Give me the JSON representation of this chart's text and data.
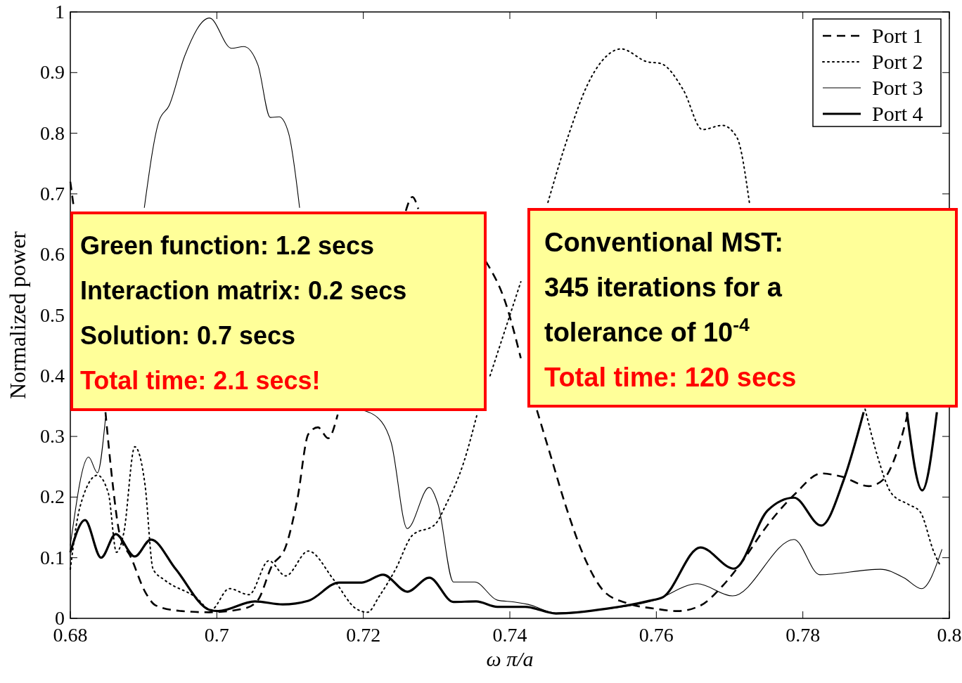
{
  "chart_data": {
    "type": "line",
    "xlabel": "ω π/a",
    "ylabel": "Normalized power",
    "xlim": [
      0.68,
      0.8
    ],
    "xticks": [
      0.68,
      0.7,
      0.72,
      0.74,
      0.76,
      0.78,
      0.8
    ],
    "ylim": [
      0,
      1
    ],
    "yticks": [
      0,
      0.1,
      0.2,
      0.3,
      0.4,
      0.5,
      0.6,
      0.7,
      0.8,
      0.9,
      1
    ],
    "grid": false,
    "legend": "top right",
    "series": [
      {
        "name": "Port 1",
        "color": "#000000",
        "line_style": "dashed",
        "x": [
          0.68,
          0.6805,
          0.683,
          0.6848,
          0.6858,
          0.6867,
          0.6883,
          0.6902,
          0.6917,
          0.6952,
          0.699,
          0.7037,
          0.7056,
          0.7075,
          0.7094,
          0.711,
          0.7125,
          0.7138,
          0.7152,
          0.7165,
          0.72,
          0.7258,
          0.7267,
          0.7275,
          0.732,
          0.7367,
          0.7394,
          0.7415,
          0.743,
          0.7437,
          0.7456,
          0.7477,
          0.7502,
          0.7529,
          0.756,
          0.7598,
          0.7629,
          0.766,
          0.769,
          0.7721,
          0.7744,
          0.779,
          0.7825,
          0.7852,
          0.789,
          0.791,
          0.7929,
          0.7944
        ],
        "values": [
          0.72,
          0.675,
          null,
          0.34,
          0.22,
          0.141,
          0.1,
          0.044,
          0.021,
          0.012,
          0.01,
          0.016,
          0.03,
          0.086,
          0.118,
          0.197,
          0.304,
          0.315,
          0.297,
          0.336,
          null,
          0.672,
          0.695,
          0.675,
          null,
          0.589,
          0.521,
          0.429,
          null,
          0.343,
          0.267,
          0.183,
          0.1,
          0.044,
          0.025,
          0.016,
          0.012,
          0.021,
          0.053,
          0.1,
          0.141,
          0.206,
          0.239,
          0.234,
          0.218,
          0.229,
          0.276,
          0.341
        ]
      },
      {
        "name": "Port 2",
        "color": "#000000",
        "line_style": "dotted",
        "x": [
          0.68,
          0.6813,
          0.6837,
          0.6852,
          0.6863,
          0.6873,
          0.6888,
          0.6902,
          0.6913,
          0.6929,
          0.6971,
          0.6992,
          0.7017,
          0.7044,
          0.7071,
          0.7094,
          0.7125,
          0.716,
          0.719,
          0.7206,
          0.7221,
          0.7244,
          0.7267,
          0.7298,
          0.7313,
          0.7337,
          0.7355,
          0.736,
          0.7373,
          0.7415,
          0.743,
          0.7452,
          0.7481,
          0.7506,
          0.7525,
          0.7552,
          0.7587,
          0.7606,
          0.7637,
          0.7663,
          0.769,
          0.771,
          0.7727,
          0.78,
          0.7885,
          0.7902,
          0.7921,
          0.7944,
          0.796,
          0.7979,
          0.7988
        ],
        "values": [
          0.081,
          0.183,
          0.236,
          0.206,
          0.109,
          0.141,
          0.283,
          0.22,
          0.081,
          0.063,
          0.035,
          0.014,
          0.049,
          0.039,
          0.095,
          0.07,
          0.111,
          0.063,
          0.016,
          0.01,
          0.035,
          0.081,
          0.137,
          0.155,
          0.188,
          0.257,
          0.335,
          null,
          0.4,
          0.555,
          null,
          0.686,
          0.8,
          0.88,
          0.918,
          0.939,
          0.918,
          0.915,
          0.871,
          0.806,
          0.813,
          0.793,
          0.686,
          null,
          0.345,
          0.267,
          0.206,
          0.188,
          0.176,
          0.109,
          0.086
        ]
      },
      {
        "name": "Port 3",
        "color": "#000000",
        "line_style": "solid",
        "x": [
          0.68,
          0.6825,
          0.6837,
          0.6848,
          0.687,
          0.6901,
          0.6921,
          0.6935,
          0.6956,
          0.699,
          0.702,
          0.7037,
          0.7056,
          0.7073,
          0.7085,
          0.7098,
          0.7113,
          0.715,
          0.72,
          0.7225,
          0.7238,
          0.726,
          0.729,
          0.7302,
          0.7323,
          0.7352,
          0.7383,
          0.7406,
          0.7425,
          0.7463,
          0.7521,
          0.7598,
          0.7656,
          0.7704,
          0.7788,
          0.7823,
          0.7906,
          0.7938,
          0.7962,
          0.799
        ],
        "values": [
          0.12,
          0.266,
          0.24,
          0.33,
          null,
          0.677,
          0.82,
          0.846,
          0.927,
          0.99,
          0.94,
          0.943,
          0.913,
          0.826,
          0.827,
          0.8,
          0.677,
          null,
          0.343,
          0.324,
          0.29,
          0.148,
          0.216,
          0.188,
          0.06,
          0.06,
          0.03,
          0.027,
          0.023,
          0.009,
          0.014,
          0.03,
          0.057,
          0.037,
          0.13,
          0.072,
          0.081,
          0.067,
          0.049,
          0.114
        ]
      },
      {
        "name": "Port 4",
        "color": "#000000",
        "line_style": "solid",
        "x": [
          0.68,
          0.682,
          0.6842,
          0.6862,
          0.6888,
          0.691,
          0.6944,
          0.699,
          0.7002,
          0.7052,
          0.709,
          0.7125,
          0.7167,
          0.7198,
          0.7227,
          0.726,
          0.729,
          0.7323,
          0.7354,
          0.7383,
          0.7421,
          0.7463,
          0.7533,
          0.759,
          0.7609,
          0.766,
          0.7706,
          0.7752,
          0.7788,
          0.7825,
          0.7856,
          0.7883,
          0.791,
          0.7942,
          0.7963,
          0.7983
        ],
        "values": [
          0.109,
          0.162,
          0.1,
          0.139,
          0.102,
          0.13,
          0.081,
          0.014,
          0.012,
          0.028,
          0.023,
          0.029,
          0.059,
          0.059,
          0.072,
          0.044,
          0.067,
          0.027,
          0.028,
          0.019,
          0.019,
          0.008,
          0.016,
          0.029,
          0.035,
          0.117,
          0.082,
          0.178,
          0.199,
          0.153,
          0.229,
          0.34,
          null,
          0.34,
          0.211,
          0.34
        ]
      }
    ],
    "annotations": [
      "Green function: 1.2 secs",
      "Interaction matrix: 0.2 secs",
      "Solution: 0.7 secs",
      "Total time: 2.1 secs!",
      "Conventional MST:",
      "345 iterations for a tolerance of 10$^{-4}$",
      "Total time: 120 secs"
    ]
  }
}
